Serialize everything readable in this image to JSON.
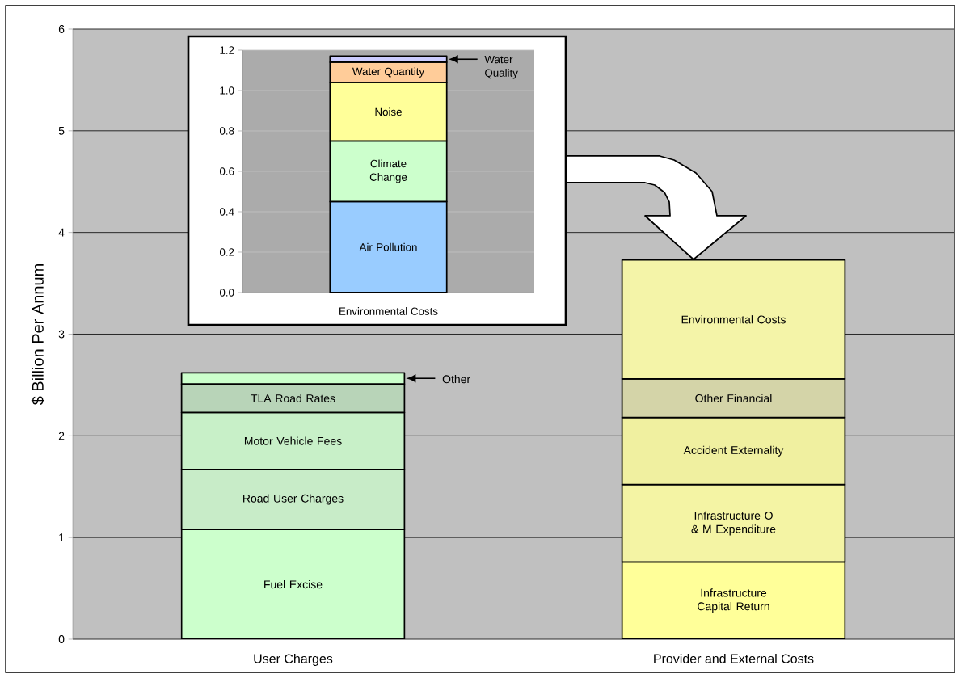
{
  "chart_data": [
    {
      "type": "bar",
      "stacked": true,
      "ylabel": "$ Billion Per Annum",
      "categories": [
        "User Charges",
        "Provider and External Costs"
      ],
      "ylim": [
        0,
        6
      ],
      "yticks": [
        0,
        1,
        2,
        3,
        4,
        5,
        6
      ],
      "grid": "y",
      "series": [
        {
          "name": "Fuel Excise",
          "color": "#ccffcc",
          "values": [
            1.08,
            null
          ]
        },
        {
          "name": "Road User Charges",
          "color": "#c8ecc8",
          "values": [
            0.59,
            null
          ]
        },
        {
          "name": "Motor Vehicle Fees",
          "color": "#c8f0c8",
          "values": [
            0.56,
            null
          ]
        },
        {
          "name": "TLA Road Rates",
          "color": "#b8d4b8",
          "values": [
            0.28,
            null
          ]
        },
        {
          "name": "Other",
          "color": "#ccffcc",
          "values": [
            0.11,
            null
          ]
        },
        {
          "name": "Infrastructure Capital Return",
          "color": "#ffff99",
          "values": [
            null,
            0.76
          ]
        },
        {
          "name": "Infrastructure O & M Expenditure",
          "color": "#f4f4a4",
          "values": [
            null,
            0.76
          ]
        },
        {
          "name": "Accident Externality",
          "color": "#f0f0a0",
          "values": [
            null,
            0.66
          ]
        },
        {
          "name": "Other Financial",
          "color": "#d4d4a8",
          "values": [
            null,
            0.38
          ]
        },
        {
          "name": "Environmental Costs",
          "color": "#f4f4a8",
          "values": [
            null,
            1.17
          ]
        }
      ]
    },
    {
      "type": "bar",
      "stacked": true,
      "categories": [
        "Environmental Costs"
      ],
      "ylim": [
        0,
        1.2
      ],
      "grid": "y",
      "yticks": [
        {
          "value": 0,
          "label": "0.0"
        },
        {
          "value": 0.2,
          "label": "0.2"
        },
        {
          "value": 0.4,
          "label": "0.4"
        },
        {
          "value": 0.6,
          "label": "0.6"
        },
        {
          "value": 0.8,
          "label": "0.8"
        },
        {
          "value": 1.0,
          "label": "1.0"
        },
        {
          "value": 1.2,
          "label": "1.2"
        }
      ],
      "series": [
        {
          "name": "Air Pollution",
          "color": "#99ccff",
          "values": [
            0.45
          ]
        },
        {
          "name": "Climate Change",
          "color": "#ccffcc",
          "values": [
            0.3
          ]
        },
        {
          "name": "Noise",
          "color": "#ffff99",
          "values": [
            0.29
          ]
        },
        {
          "name": "Water Quantity",
          "color": "#ffcc99",
          "values": [
            0.1
          ]
        },
        {
          "name": "Water Quality",
          "color": "#ccccff",
          "values": [
            0.03
          ]
        }
      ]
    }
  ]
}
